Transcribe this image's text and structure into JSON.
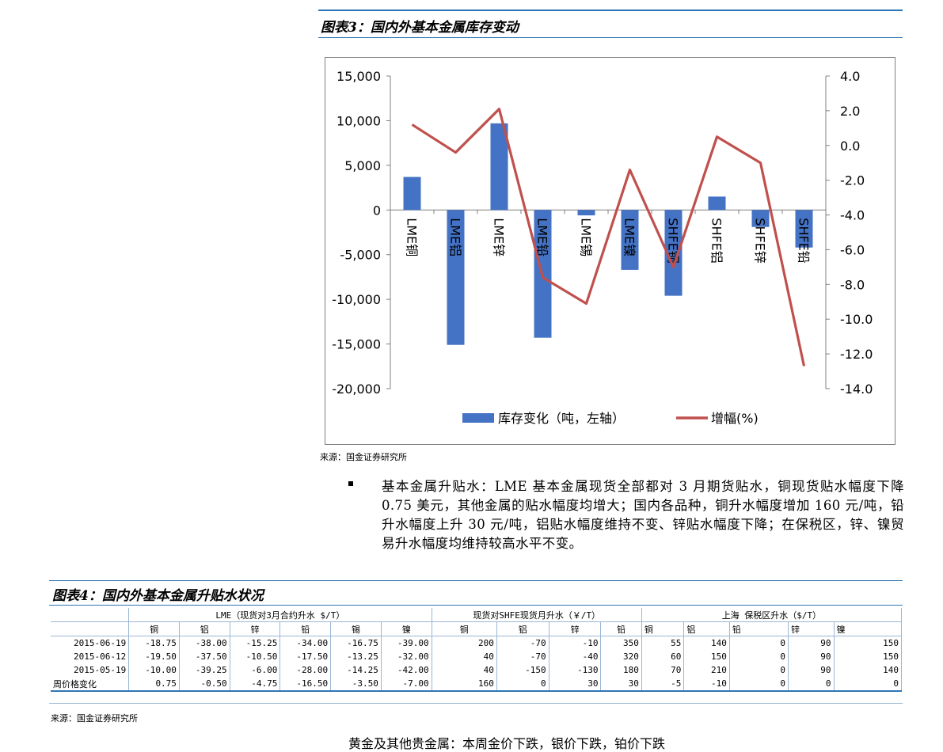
{
  "figure3": {
    "title": "图表3：国内外基本金属库存变动",
    "source": "来源：国金证券研究所"
  },
  "chart_data": {
    "type": "bar",
    "categories": [
      "LME铜",
      "LME铝",
      "LME锌",
      "LME铅",
      "LME锡",
      "LME镍",
      "SHFE铜",
      "SHFE铝",
      "SHFE锌",
      "SHFE铅"
    ],
    "series": [
      {
        "name": "库存变化（吨，左轴）",
        "type": "bar",
        "axis": "left",
        "color": "#4472c4",
        "values": [
          3700,
          -15100,
          9700,
          -14300,
          -600,
          -6700,
          -9600,
          1500,
          -1900,
          -4200
        ]
      },
      {
        "name": "增幅(%)",
        "type": "line",
        "axis": "right",
        "color": "#c0504d",
        "values": [
          1.2,
          -0.4,
          2.1,
          -7.6,
          -9.1,
          -1.4,
          -7.0,
          0.5,
          -1.0,
          -12.7
        ]
      }
    ],
    "left_ylim": [
      -20000,
      15000
    ],
    "left_ticks": [
      "15,000",
      "10,000",
      "5,000",
      "0",
      "-5,000",
      "-10,000",
      "-15,000",
      "-20,000"
    ],
    "right_ylim": [
      -14.0,
      4.0
    ],
    "right_ticks": [
      "4.0",
      "2.0",
      "0.0",
      "-2.0",
      "-4.0",
      "-6.0",
      "-8.0",
      "-10.0",
      "-12.0",
      "-14.0"
    ],
    "legend_position": "bottom",
    "grid": false
  },
  "bullet": {
    "text": "基本金属升贴水：LME 基本金属现货全部都对 3 月期货贴水，铜现货贴水幅度下降 0.75 美元，其他金属的贴水幅度均增大；国内各品种，铜升水幅度增加 160 元/吨，铅升水幅度上升 30 元/吨，铝贴水幅度维持不变、锌贴水幅度下降；在保税区，锌、镍贸易升水幅度均维持较高水平不变。"
  },
  "figure4": {
    "title": "图表4：国内外基本金属升贴水状况",
    "source": "来源：国金证券研究所",
    "groups": [
      {
        "label": "LME（现货对3月合约升水 $/T）",
        "cols": [
          "铜",
          "铝",
          "锌",
          "铅",
          "锡",
          "镍"
        ]
      },
      {
        "label": "现货对SHFE现货月升水（￥/T）",
        "cols": [
          "铜",
          "铝",
          "锌",
          "铅"
        ]
      },
      {
        "label": "上海 保税区升水（$/T）",
        "cols": [
          "铜",
          "铝",
          "铅",
          "锌",
          "镍"
        ]
      }
    ],
    "rows": [
      {
        "label": "2015-06-19",
        "values": [
          "-18.75",
          "-38.00",
          "-15.25",
          "-34.00",
          "-16.75",
          "-39.00",
          "200",
          "-70",
          "-10",
          "350",
          "55",
          "140",
          "0",
          "90",
          "150"
        ]
      },
      {
        "label": "2015-06-12",
        "values": [
          "-19.50",
          "-37.50",
          "-10.50",
          "-17.50",
          "-13.25",
          "-32.00",
          "40",
          "-70",
          "-40",
          "320",
          "60",
          "150",
          "0",
          "90",
          "150"
        ]
      },
      {
        "label": "2015-05-19",
        "values": [
          "-10.00",
          "-39.25",
          "-6.00",
          "-28.00",
          "-14.25",
          "-42.00",
          "40",
          "-150",
          "-130",
          "180",
          "70",
          "210",
          "0",
          "90",
          "140"
        ]
      },
      {
        "label": "周价格变化",
        "values": [
          "0.75",
          "-0.50",
          "-4.75",
          "-16.50",
          "-3.50",
          "-7.00",
          "160",
          "0",
          "30",
          "30",
          "-5",
          "-10",
          "0",
          "0",
          "0"
        ]
      }
    ]
  },
  "footer_fragment": "黄金及其他贵金属：本周金价下跌，银价下跌，铂价下跌"
}
